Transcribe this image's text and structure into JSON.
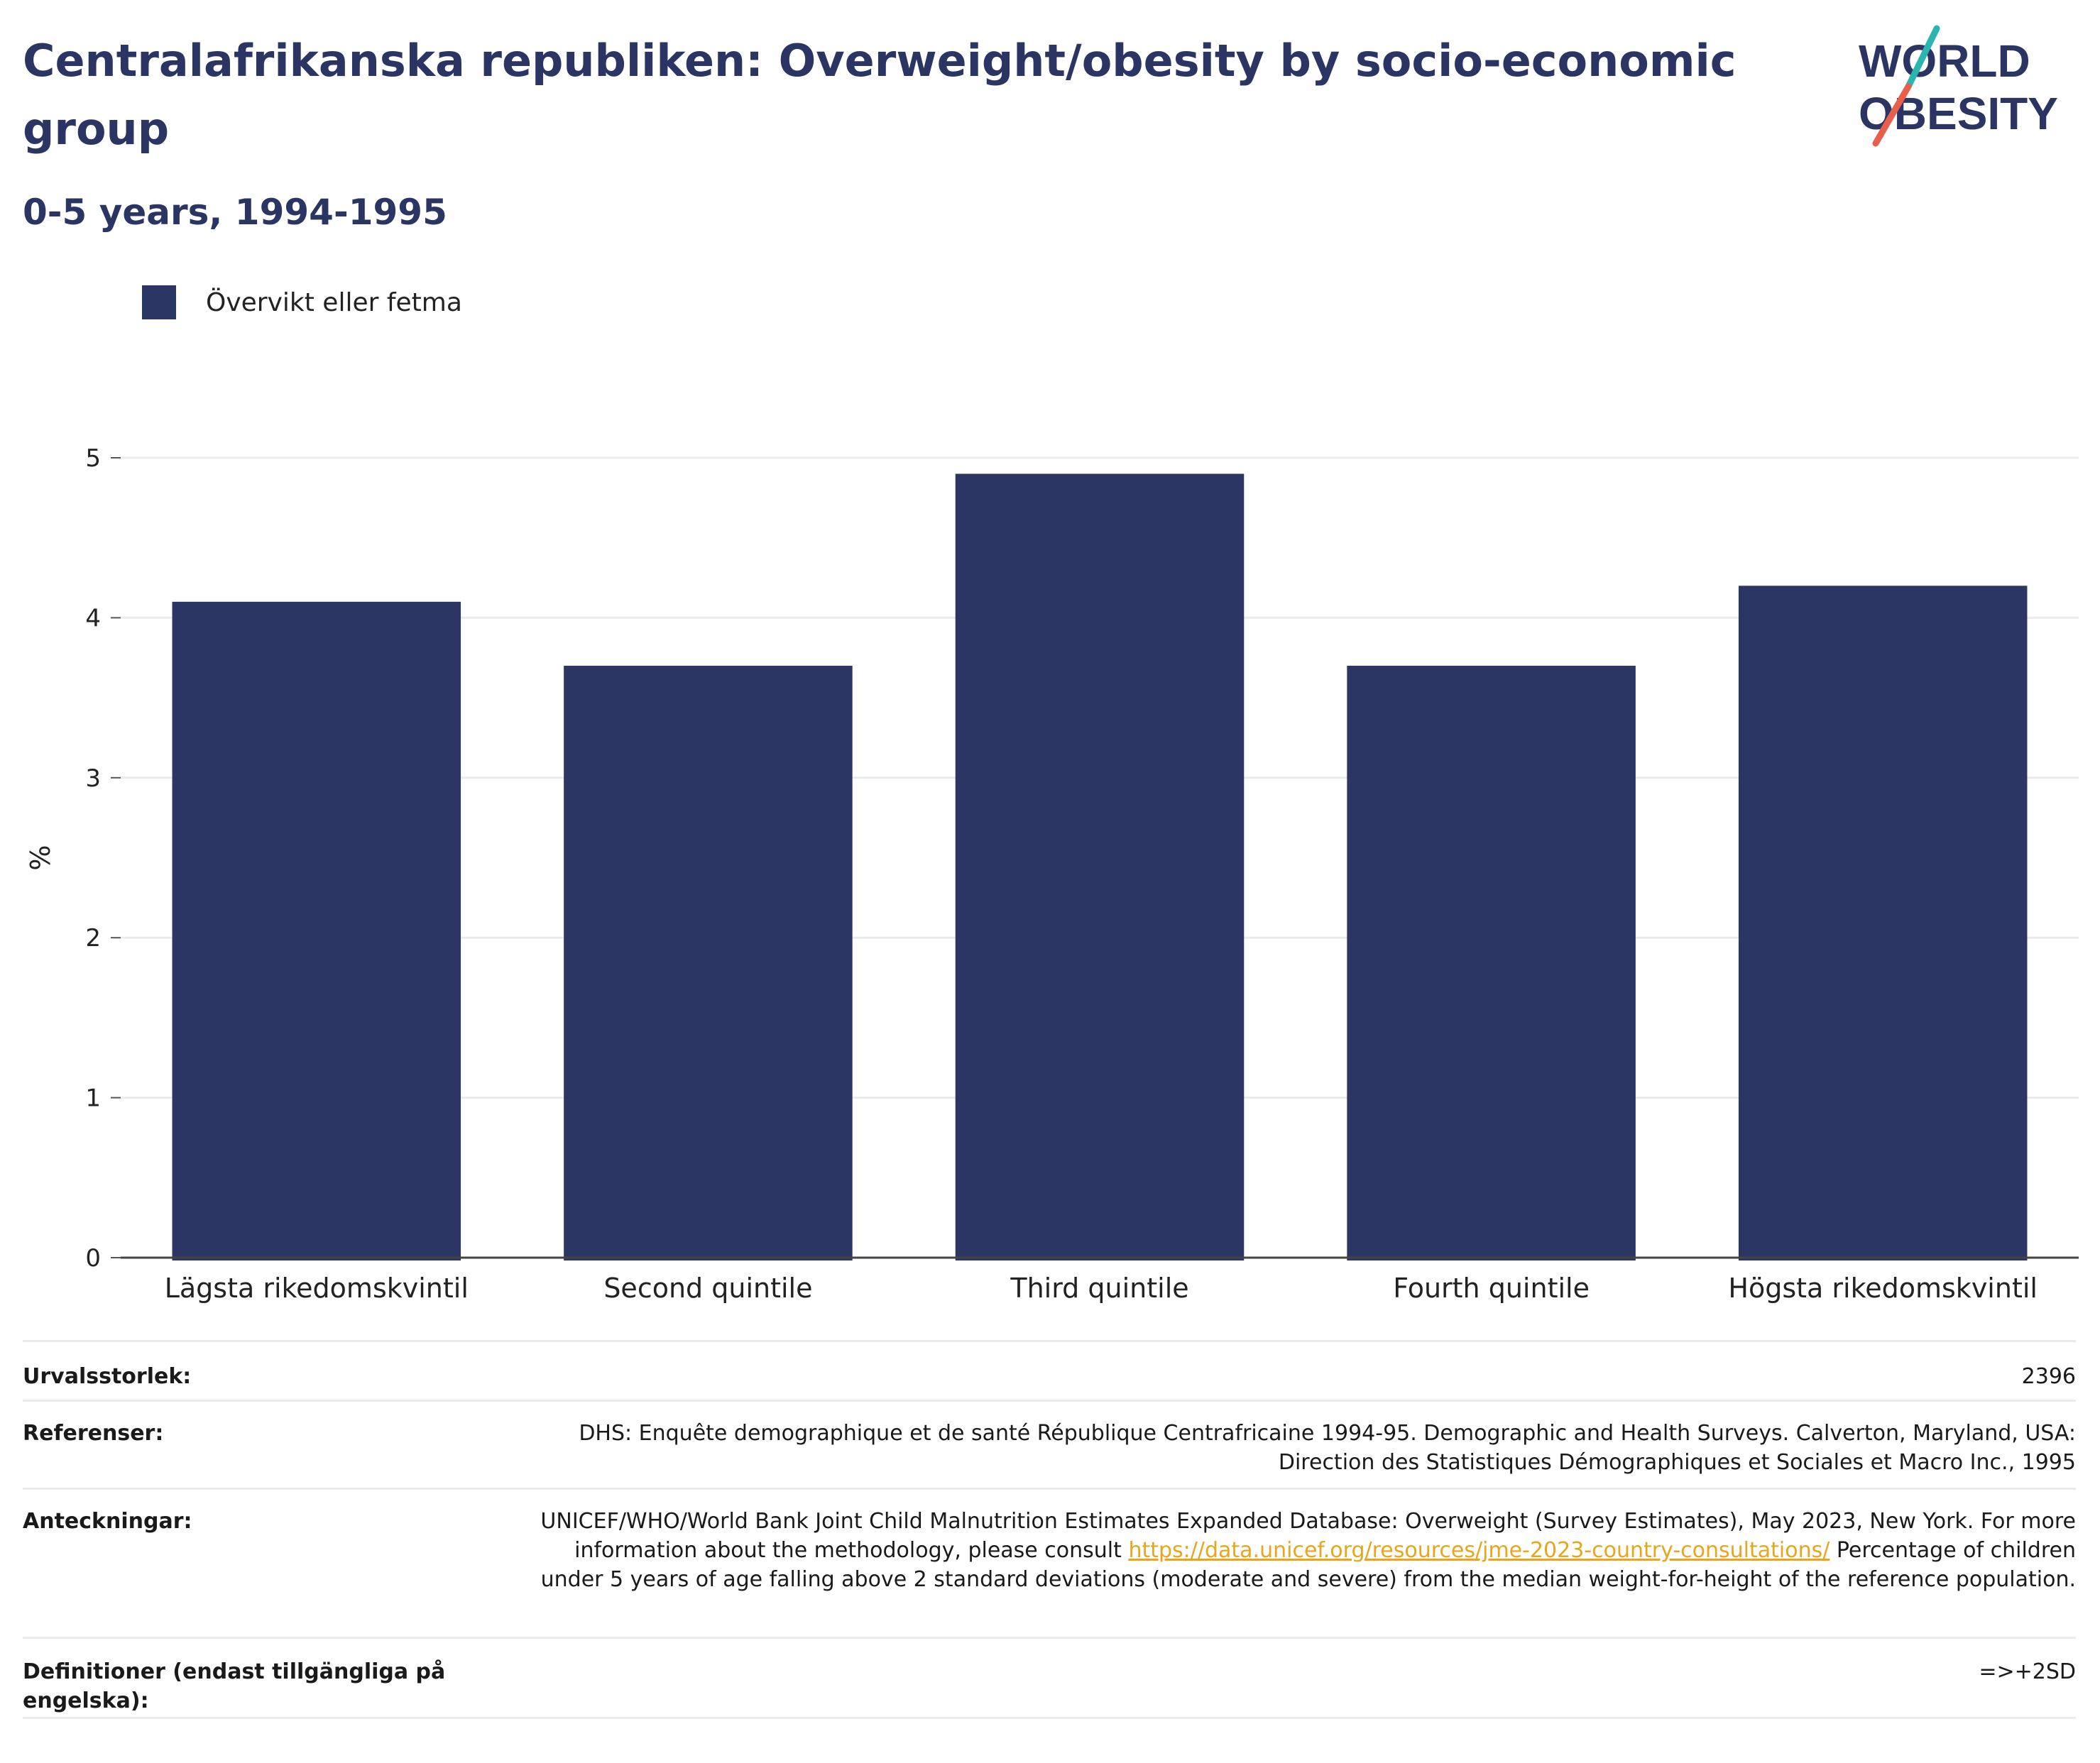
{
  "header": {
    "title": "Centralafrikanska republiken: Overweight/obesity by socio-economic group",
    "subtitle": "0-5 years, 1994-1995"
  },
  "logo": {
    "line1": "WORLD",
    "line2": "OBESITY",
    "colors": {
      "text": "#2b3563",
      "slash_red": "#e8604c",
      "slash_teal": "#2bb5b0"
    }
  },
  "chart_data": {
    "type": "bar",
    "title": "",
    "xlabel": "",
    "ylabel": "%",
    "ylim": [
      0,
      5
    ],
    "yticks": [
      "0",
      "1",
      "2",
      "3",
      "4",
      "5"
    ],
    "grid": true,
    "legend_position": "top-left",
    "categories": [
      "Lägsta rikedomskvintil",
      "Second quintile",
      "Third quintile",
      "Fourth quintile",
      "Högsta rikedomskvintil"
    ],
    "series": [
      {
        "name": "Övervikt eller fetma",
        "color": "#2b3664",
        "values": [
          4.1,
          3.7,
          4.9,
          3.7,
          4.2
        ]
      }
    ]
  },
  "footer": {
    "sample_size": {
      "label": "Urvalsstorlek:",
      "value": "2396"
    },
    "references": {
      "label": "Referenser:",
      "value": "DHS: Enquête demographique et de santé République Centrafricaine 1994-95. Demographic and Health Surveys. Calverton, Maryland, USA: Direction des Statistiques Démographiques et Sociales et Macro Inc., 1995"
    },
    "notes": {
      "label": "Anteckningar:",
      "text_before": "UNICEF/WHO/World Bank Joint Child Malnutrition Estimates Expanded Database: Overweight (Survey Estimates), May 2023, New York. For more information about the methodology, please consult ",
      "link": "https://data.unicef.org/resources/jme-2023-country-consultations/",
      "text_after": " Percentage of children under 5 years of age falling above 2 standard deviations (moderate and severe) from the median weight-for-height of the reference population."
    },
    "definitions": {
      "label": "Definitioner (endast tillgängliga på engelska):",
      "value": "=>+2SD"
    }
  }
}
